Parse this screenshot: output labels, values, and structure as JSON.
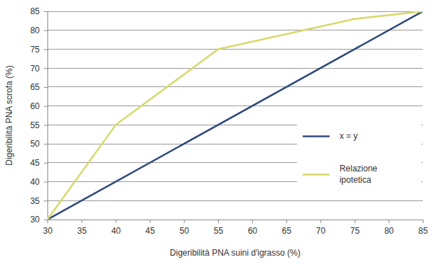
{
  "chart_data": {
    "type": "line",
    "x_label": "Digeribilità PNA suini d'igrasso (%)",
    "y_label": "Digeribilità PNA scrofa (%)",
    "xlim": [
      30,
      85
    ],
    "xticks": [
      30,
      35,
      40,
      45,
      50,
      55,
      60,
      65,
      70,
      75,
      80,
      85
    ],
    "ylim": [
      30,
      85
    ],
    "yticks": [
      30,
      35,
      40,
      45,
      50,
      55,
      60,
      65,
      70,
      75,
      80,
      85
    ],
    "grid": true,
    "legend": "right",
    "series": [
      {
        "name": "x = y",
        "color": "#2e4a7d",
        "x": [
          30,
          85
        ],
        "values": [
          30,
          85
        ]
      },
      {
        "name": "Relazione ipotetica",
        "color": "#d7d96b",
        "x": [
          30,
          40,
          55,
          75,
          85
        ],
        "values": [
          30,
          55,
          75,
          83,
          85
        ]
      }
    ]
  }
}
